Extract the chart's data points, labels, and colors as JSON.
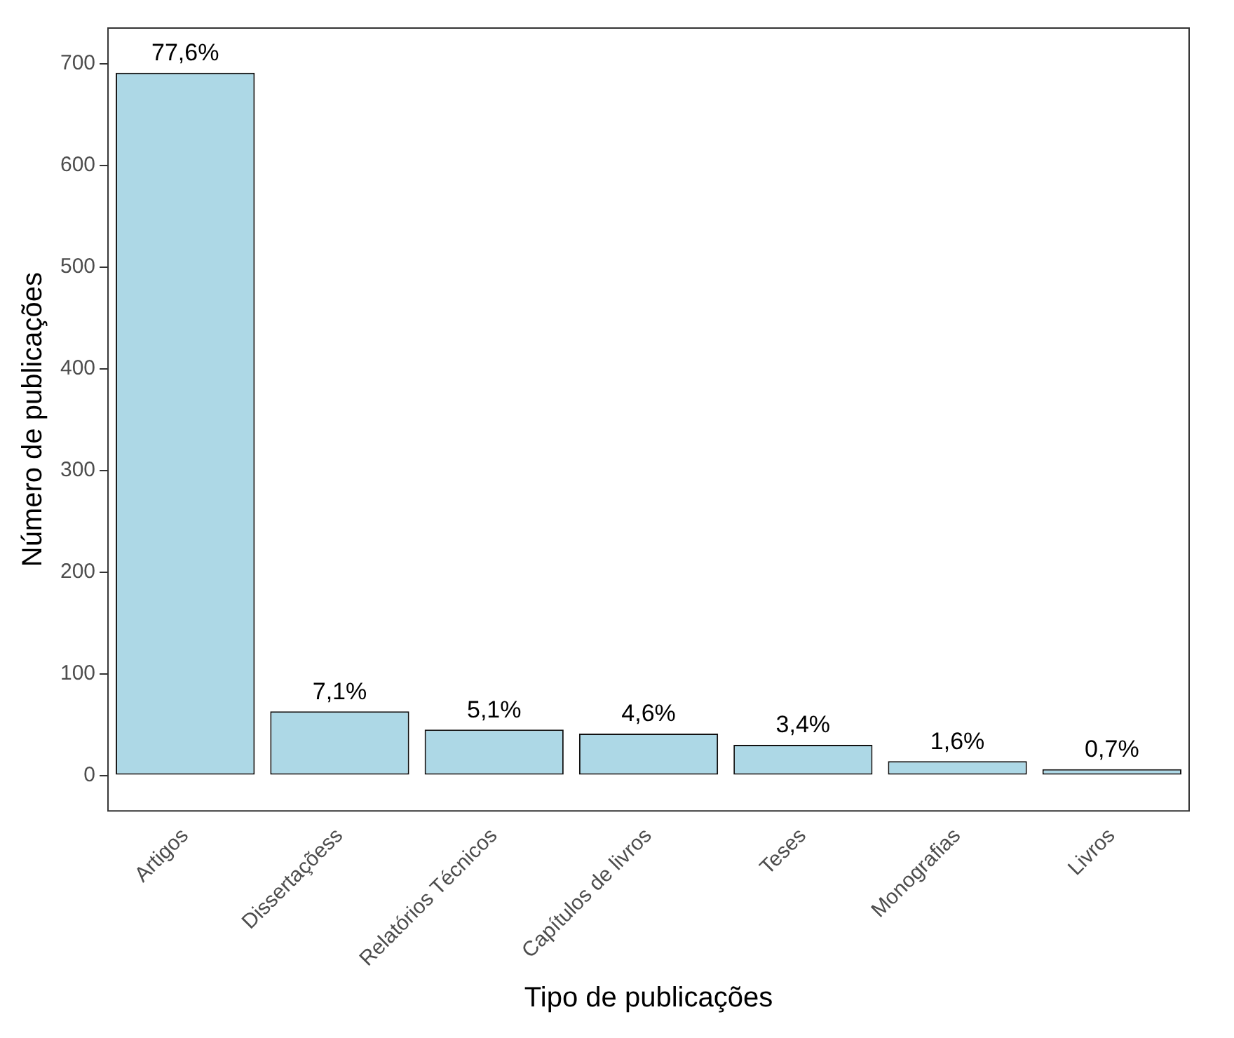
{
  "chart_data": {
    "type": "bar",
    "xlabel": "Tipo de publicações",
    "ylabel": "Número de publicações",
    "categories": [
      "Artigos",
      "Dissertaçõess",
      "Relatórios Técnicos",
      "Capítulos de livros",
      "Teses",
      "Monografias",
      "Livros"
    ],
    "values": [
      691,
      63,
      45,
      41,
      30,
      14,
      6
    ],
    "color": "#add8e6",
    "ylim": [
      -35,
      735
    ],
    "yticks": [
      0,
      100,
      200,
      300,
      400,
      500,
      600,
      700
    ],
    "grid": false,
    "annotations": [
      {
        "text": "77,6%",
        "x": "Artigos",
        "y": 691
      },
      {
        "text": "7,1%",
        "x": "Dissertaçõess",
        "y": 63
      },
      {
        "text": "5,1%",
        "x": "Relatórios Técnicos",
        "y": 45
      },
      {
        "text": "4,6%",
        "x": "Capítulos de livros",
        "y": 41
      },
      {
        "text": "3,4%",
        "x": "Teses",
        "y": 30
      },
      {
        "text": "1,6%",
        "x": "Monografias",
        "y": 14
      },
      {
        "text": "0,7%",
        "x": "Livros",
        "y": 6
      }
    ]
  }
}
